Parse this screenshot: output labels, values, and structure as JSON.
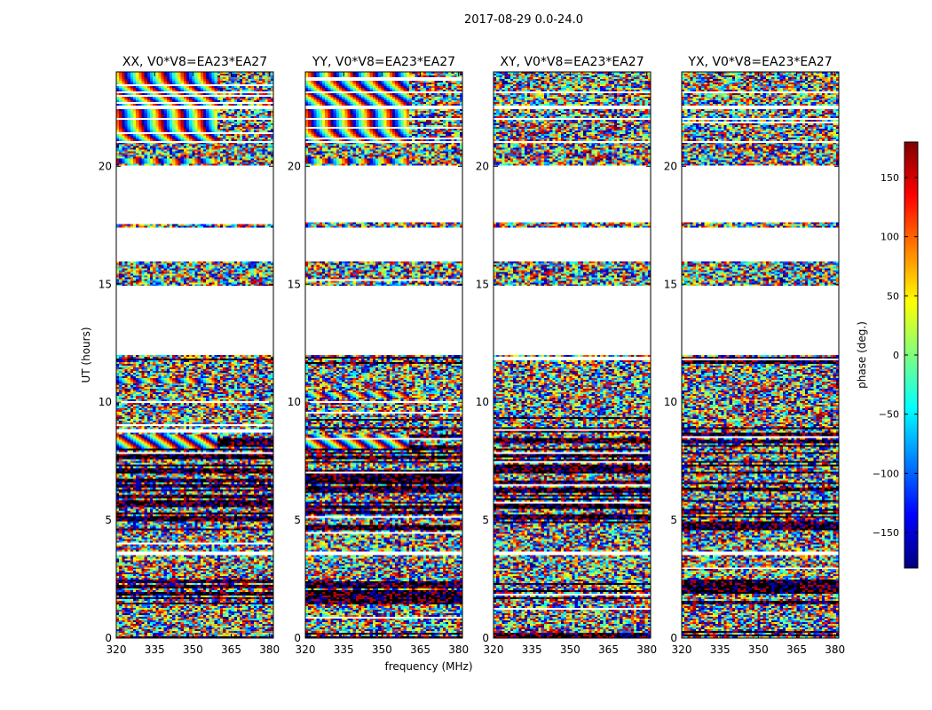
{
  "suptitle": "2017-08-29 0.0-24.0",
  "chart_data": [
    {
      "type": "heatmap",
      "title": "XX, V0*V8=EA23*EA27",
      "xlabel": "frequency (MHz)",
      "ylabel": "UT (hours)",
      "xlim": [
        320,
        381.5
      ],
      "ylim": [
        0,
        24
      ],
      "xticks": [
        320,
        335,
        350,
        365,
        380
      ],
      "yticks": [
        0,
        5,
        10,
        15,
        20
      ],
      "xtick_labels": [
        "320",
        "335",
        "350",
        "365",
        "380"
      ],
      "ytick_labels": [
        "0",
        "5",
        "10",
        "15",
        "20"
      ],
      "fringe_rows_hours": [
        [
          8.0,
          8.6
        ],
        [
          10.8,
          11.0
        ],
        [
          20.1,
          20.3
        ],
        [
          20.9,
          24.0
        ]
      ],
      "fringe_cols_mhz": [
        320,
        359
      ]
    },
    {
      "type": "heatmap",
      "title": "YY, V0*V8=EA23*EA27",
      "xlabel": "",
      "ylabel": "",
      "xlim": [
        320,
        381.5
      ],
      "ylim": [
        0,
        24
      ],
      "xticks": [
        320,
        335,
        350,
        365,
        380
      ],
      "yticks": [
        0,
        5,
        10,
        15,
        20
      ],
      "xtick_labels": [
        "320",
        "335",
        "350",
        "365",
        "380"
      ],
      "ytick_labels": [
        "0",
        "5",
        "10",
        "15",
        "20"
      ],
      "fringe_rows_hours": [
        [
          8.0,
          8.6
        ],
        [
          10.2,
          10.4
        ],
        [
          20.1,
          20.3
        ],
        [
          20.9,
          24.0
        ]
      ],
      "fringe_cols_mhz": [
        320,
        361
      ]
    },
    {
      "type": "heatmap",
      "title": "XY, V0*V8=EA23*EA27",
      "xlabel": "",
      "ylabel": "",
      "xlim": [
        320,
        381.5
      ],
      "ylim": [
        0,
        24
      ],
      "xticks": [
        320,
        335,
        350,
        365,
        380
      ],
      "yticks": [
        0,
        5,
        10,
        15,
        20
      ],
      "xtick_labels": [
        "320",
        "335",
        "350",
        "365",
        "380"
      ],
      "ytick_labels": [
        "0",
        "5",
        "10",
        "15",
        "20"
      ],
      "fringe_rows_hours": [],
      "fringe_cols_mhz": [
        320,
        320
      ]
    },
    {
      "type": "heatmap",
      "title": "YX, V0*V8=EA23*EA27",
      "xlabel": "",
      "ylabel": "",
      "xlim": [
        320,
        381.5
      ],
      "ylim": [
        0,
        24
      ],
      "xticks": [
        320,
        335,
        350,
        365,
        380
      ],
      "yticks": [
        0,
        5,
        10,
        15,
        20
      ],
      "xtick_labels": [
        "320",
        "335",
        "350",
        "365",
        "380"
      ],
      "ytick_labels": [
        "0",
        "5",
        "10",
        "15",
        "20"
      ],
      "fringe_rows_hours": [],
      "fringe_cols_mhz": [
        320,
        320
      ]
    }
  ],
  "data_gaps_hours": [
    [
      3.55,
      3.7
    ],
    [
      14.7,
      14.95
    ],
    [
      16.0,
      16.2
    ],
    [
      16.9,
      17.2
    ],
    [
      17.6,
      17.8
    ],
    [
      18.0,
      19.8
    ],
    [
      21.0,
      21.1
    ],
    [
      21.95,
      22.05
    ],
    [
      22.45,
      22.55
    ],
    [
      23.1,
      23.2
    ]
  ],
  "dense_rows_hours": [
    [
      0.0,
      0.3
    ],
    [
      1.4,
      2.5
    ],
    [
      4.6,
      8.9
    ],
    [
      9.2,
      9.4
    ],
    [
      11.6,
      11.9
    ]
  ],
  "colorbar": {
    "label": "phase (deg.)",
    "range": [
      -180,
      180
    ],
    "ticks": [
      -150,
      -100,
      -50,
      0,
      50,
      100,
      150
    ],
    "tick_labels": [
      "−150",
      "−100",
      "−50",
      "0",
      "50",
      "100",
      "150"
    ],
    "colormap": [
      "#00007f",
      "#0000ff",
      "#007fff",
      "#00ffff",
      "#7fff7f",
      "#ffff00",
      "#ff7f00",
      "#ff0000",
      "#7f0000"
    ]
  }
}
